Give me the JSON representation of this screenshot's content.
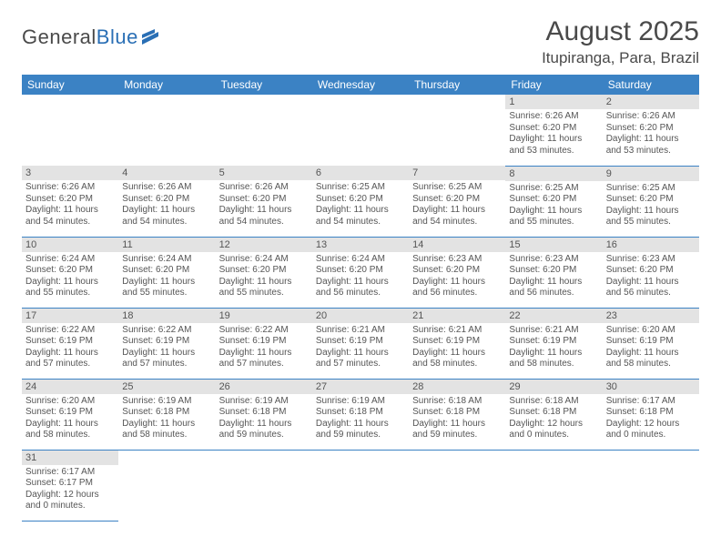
{
  "logo": {
    "name": "General",
    "suffix": "Blue"
  },
  "title": "August 2025",
  "location": "Itupiranga, Para, Brazil",
  "colors": {
    "header_bg": "#3b82c4",
    "header_text": "#ffffff",
    "daynum_bg": "#e3e3e3",
    "border": "#3b82c4",
    "body_text": "#555555",
    "logo_blue": "#2a6fb5"
  },
  "weekdays": [
    "Sunday",
    "Monday",
    "Tuesday",
    "Wednesday",
    "Thursday",
    "Friday",
    "Saturday"
  ],
  "weeks": [
    [
      null,
      null,
      null,
      null,
      null,
      {
        "n": "1",
        "sr": "6:26 AM",
        "ss": "6:20 PM",
        "dl": "11 hours and 53 minutes."
      },
      {
        "n": "2",
        "sr": "6:26 AM",
        "ss": "6:20 PM",
        "dl": "11 hours and 53 minutes."
      }
    ],
    [
      {
        "n": "3",
        "sr": "6:26 AM",
        "ss": "6:20 PM",
        "dl": "11 hours and 54 minutes."
      },
      {
        "n": "4",
        "sr": "6:26 AM",
        "ss": "6:20 PM",
        "dl": "11 hours and 54 minutes."
      },
      {
        "n": "5",
        "sr": "6:26 AM",
        "ss": "6:20 PM",
        "dl": "11 hours and 54 minutes."
      },
      {
        "n": "6",
        "sr": "6:25 AM",
        "ss": "6:20 PM",
        "dl": "11 hours and 54 minutes."
      },
      {
        "n": "7",
        "sr": "6:25 AM",
        "ss": "6:20 PM",
        "dl": "11 hours and 54 minutes."
      },
      {
        "n": "8",
        "sr": "6:25 AM",
        "ss": "6:20 PM",
        "dl": "11 hours and 55 minutes."
      },
      {
        "n": "9",
        "sr": "6:25 AM",
        "ss": "6:20 PM",
        "dl": "11 hours and 55 minutes."
      }
    ],
    [
      {
        "n": "10",
        "sr": "6:24 AM",
        "ss": "6:20 PM",
        "dl": "11 hours and 55 minutes."
      },
      {
        "n": "11",
        "sr": "6:24 AM",
        "ss": "6:20 PM",
        "dl": "11 hours and 55 minutes."
      },
      {
        "n": "12",
        "sr": "6:24 AM",
        "ss": "6:20 PM",
        "dl": "11 hours and 55 minutes."
      },
      {
        "n": "13",
        "sr": "6:24 AM",
        "ss": "6:20 PM",
        "dl": "11 hours and 56 minutes."
      },
      {
        "n": "14",
        "sr": "6:23 AM",
        "ss": "6:20 PM",
        "dl": "11 hours and 56 minutes."
      },
      {
        "n": "15",
        "sr": "6:23 AM",
        "ss": "6:20 PM",
        "dl": "11 hours and 56 minutes."
      },
      {
        "n": "16",
        "sr": "6:23 AM",
        "ss": "6:20 PM",
        "dl": "11 hours and 56 minutes."
      }
    ],
    [
      {
        "n": "17",
        "sr": "6:22 AM",
        "ss": "6:19 PM",
        "dl": "11 hours and 57 minutes."
      },
      {
        "n": "18",
        "sr": "6:22 AM",
        "ss": "6:19 PM",
        "dl": "11 hours and 57 minutes."
      },
      {
        "n": "19",
        "sr": "6:22 AM",
        "ss": "6:19 PM",
        "dl": "11 hours and 57 minutes."
      },
      {
        "n": "20",
        "sr": "6:21 AM",
        "ss": "6:19 PM",
        "dl": "11 hours and 57 minutes."
      },
      {
        "n": "21",
        "sr": "6:21 AM",
        "ss": "6:19 PM",
        "dl": "11 hours and 58 minutes."
      },
      {
        "n": "22",
        "sr": "6:21 AM",
        "ss": "6:19 PM",
        "dl": "11 hours and 58 minutes."
      },
      {
        "n": "23",
        "sr": "6:20 AM",
        "ss": "6:19 PM",
        "dl": "11 hours and 58 minutes."
      }
    ],
    [
      {
        "n": "24",
        "sr": "6:20 AM",
        "ss": "6:19 PM",
        "dl": "11 hours and 58 minutes."
      },
      {
        "n": "25",
        "sr": "6:19 AM",
        "ss": "6:18 PM",
        "dl": "11 hours and 58 minutes."
      },
      {
        "n": "26",
        "sr": "6:19 AM",
        "ss": "6:18 PM",
        "dl": "11 hours and 59 minutes."
      },
      {
        "n": "27",
        "sr": "6:19 AM",
        "ss": "6:18 PM",
        "dl": "11 hours and 59 minutes."
      },
      {
        "n": "28",
        "sr": "6:18 AM",
        "ss": "6:18 PM",
        "dl": "11 hours and 59 minutes."
      },
      {
        "n": "29",
        "sr": "6:18 AM",
        "ss": "6:18 PM",
        "dl": "12 hours and 0 minutes."
      },
      {
        "n": "30",
        "sr": "6:17 AM",
        "ss": "6:18 PM",
        "dl": "12 hours and 0 minutes."
      }
    ],
    [
      {
        "n": "31",
        "sr": "6:17 AM",
        "ss": "6:17 PM",
        "dl": "12 hours and 0 minutes."
      },
      null,
      null,
      null,
      null,
      null,
      null
    ]
  ],
  "labels": {
    "sunrise": "Sunrise:",
    "sunset": "Sunset:",
    "daylight": "Daylight:"
  }
}
